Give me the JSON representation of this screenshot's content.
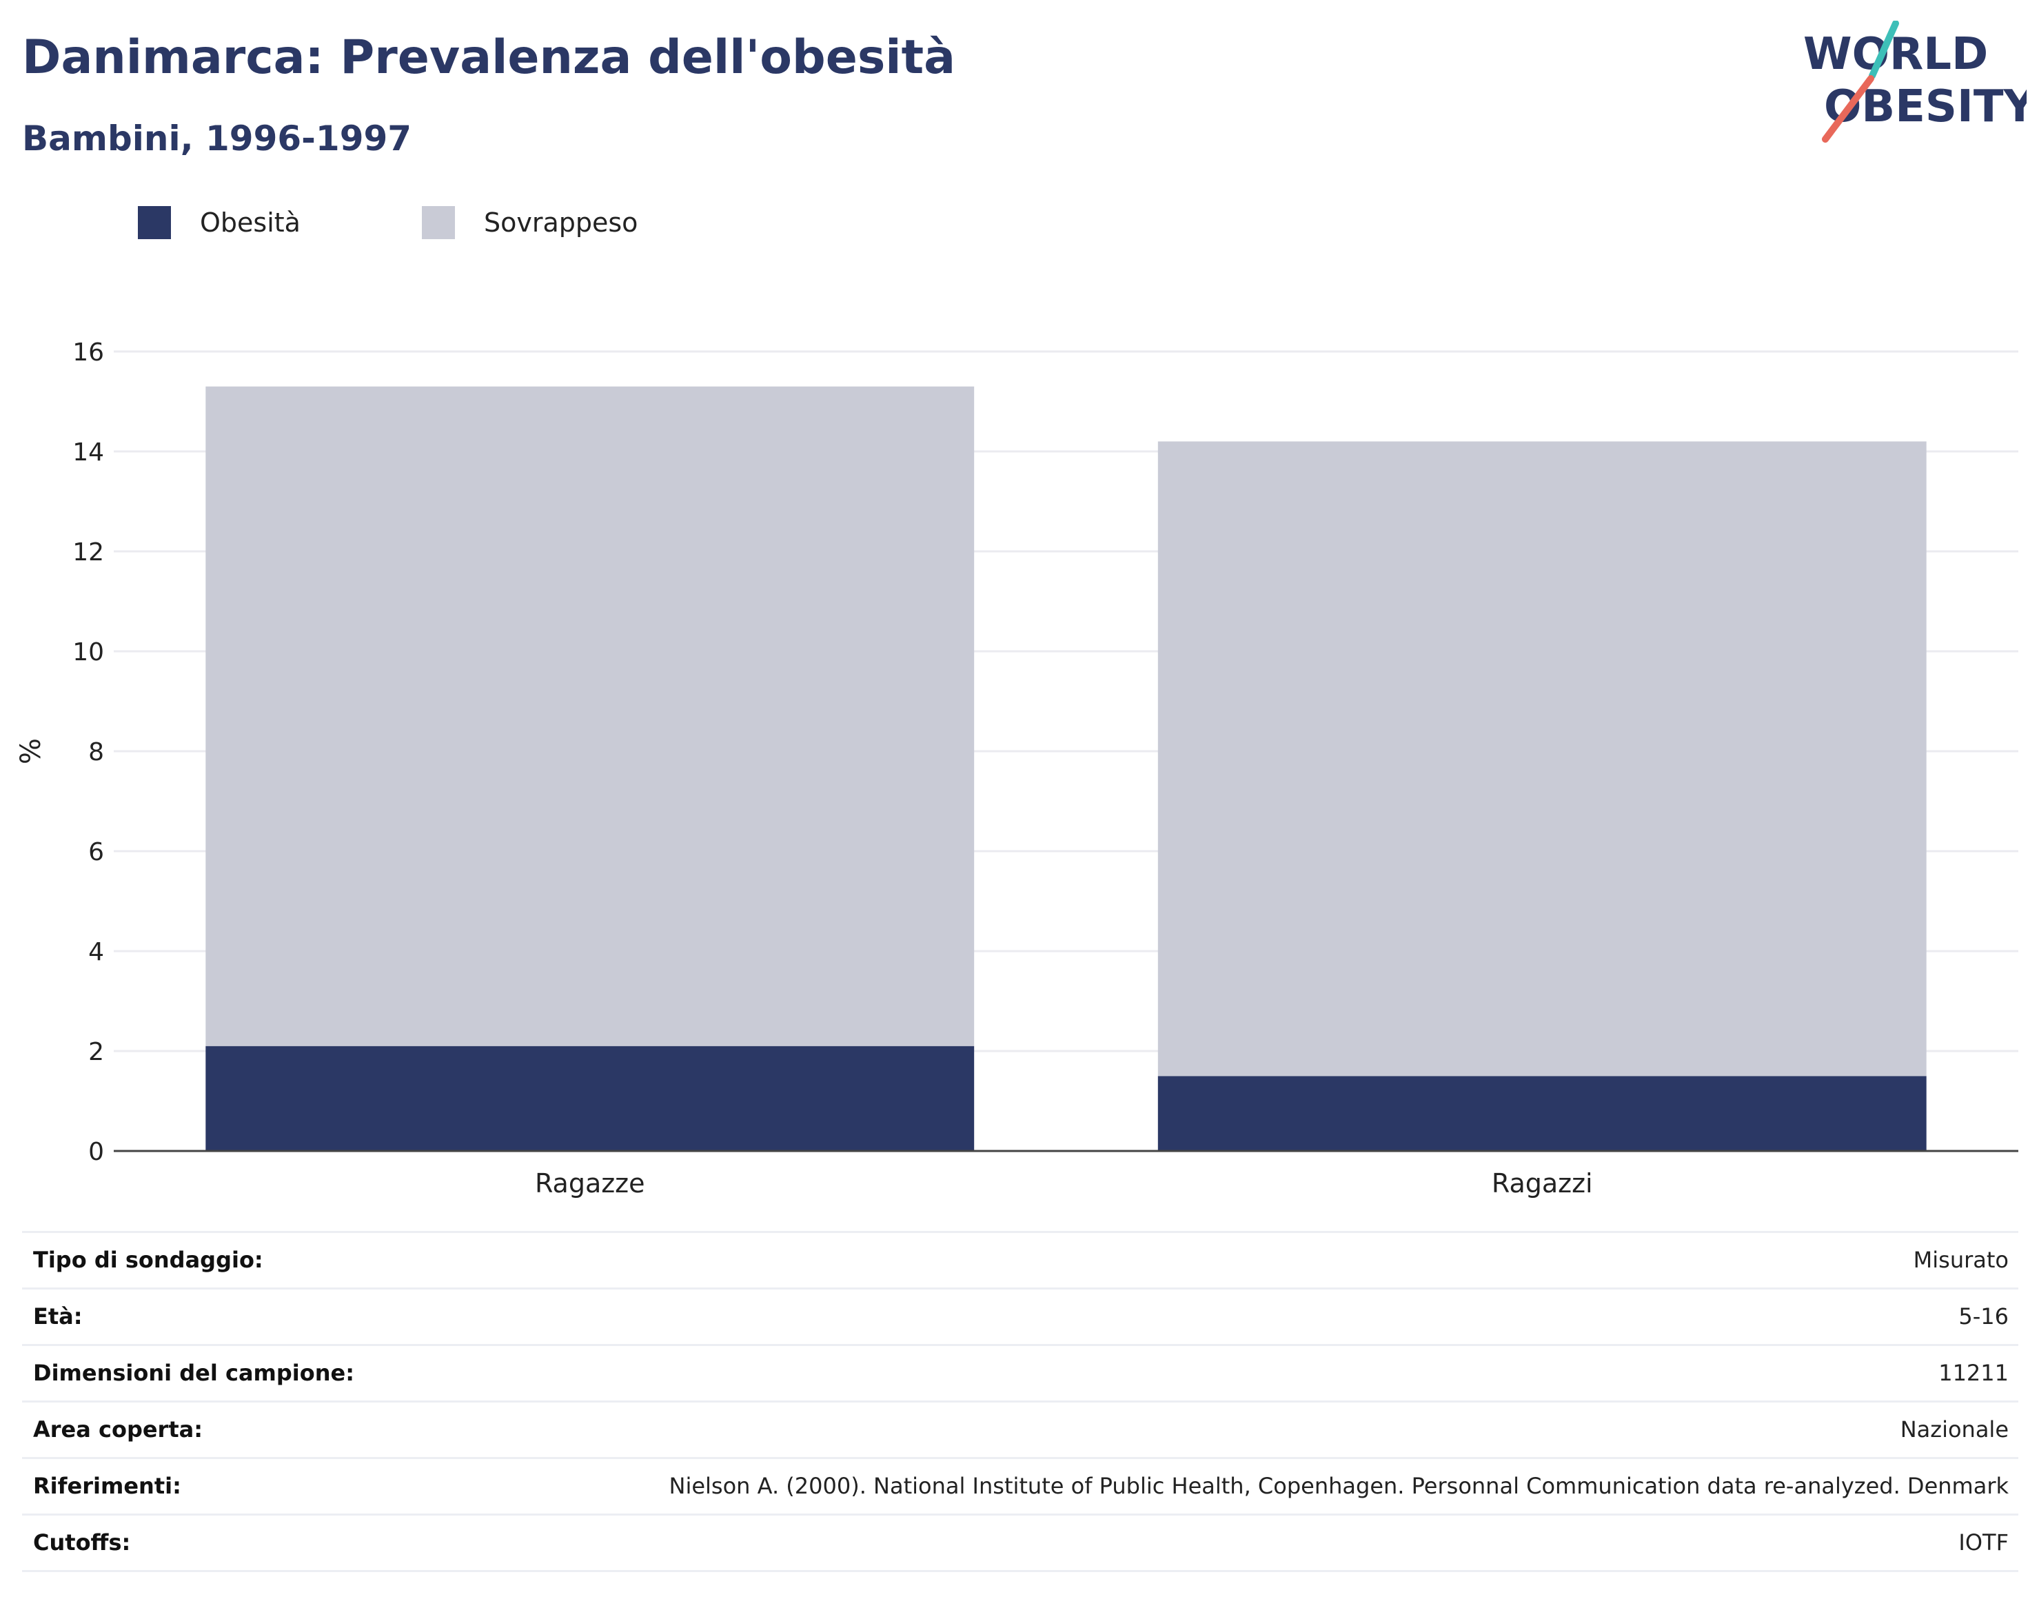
{
  "header": {
    "title": "Danimarca: Prevalenza dell'obesità",
    "subtitle": "Bambini, 1996-1997"
  },
  "logo": {
    "line1": "WORLD",
    "line2": "OBESITY",
    "colors": {
      "text": "#2b3865",
      "slash_teal": "#3dbfb8",
      "slash_coral": "#e8685a"
    }
  },
  "legend": [
    {
      "label": "Obesità",
      "color": "#2b3865"
    },
    {
      "label": "Sovrappeso",
      "color": "#c9cbd6"
    }
  ],
  "chart_data": {
    "type": "bar",
    "stacked": true,
    "categories": [
      "Ragazze",
      "Ragazzi"
    ],
    "series": [
      {
        "name": "Obesità",
        "values": [
          2.1,
          1.5
        ],
        "color": "#2b3865"
      },
      {
        "name": "Sovrappeso",
        "values": [
          13.2,
          12.7
        ],
        "color": "#c9cbd6"
      }
    ],
    "ylabel": "%",
    "ylim": [
      0,
      16
    ],
    "yticks": [
      0,
      2,
      4,
      6,
      8,
      10,
      12,
      14,
      16
    ],
    "grid": true,
    "legend_position": "top-left"
  },
  "info": [
    {
      "label": "Tipo di sondaggio:",
      "value": "Misurato"
    },
    {
      "label": "Età:",
      "value": "5-16"
    },
    {
      "label": "Dimensioni del campione:",
      "value": "11211"
    },
    {
      "label": "Area coperta:",
      "value": "Nazionale"
    },
    {
      "label": "Riferimenti:",
      "value": "Nielson A. (2000). National Institute of Public Health, Copenhagen. Personnal Communication data re-analyzed. Denmark"
    },
    {
      "label": "Cutoffs:",
      "value": "IOTF"
    }
  ]
}
